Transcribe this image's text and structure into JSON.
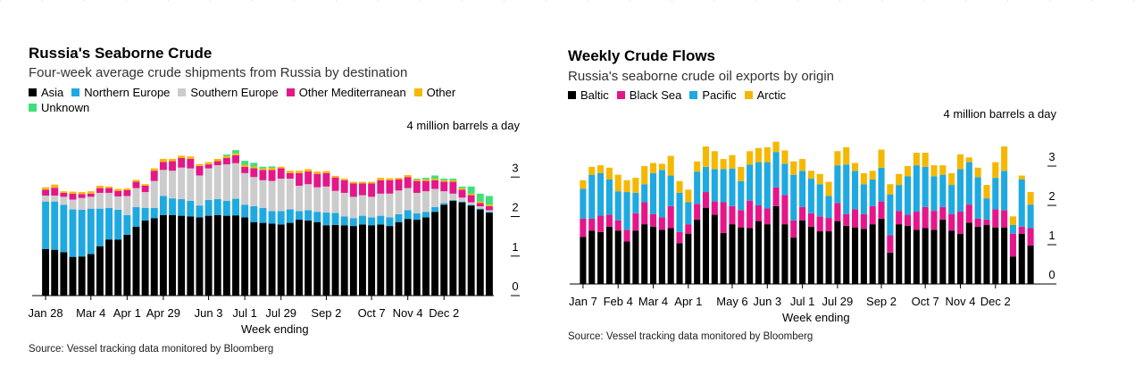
{
  "chart_data": [
    {
      "type": "bar",
      "stacked": true,
      "title": "Russia's Seaborne Crude",
      "subtitle": "Four-week average crude shipments from Russia by destination",
      "ylabel": "4 million barrels a day",
      "xlabel": "Week ending",
      "ylim": [
        0,
        4
      ],
      "yticks": [
        "0",
        "1",
        "2",
        "3"
      ],
      "xtick_labels": [
        {
          "label": "Jan 28",
          "index": 0
        },
        {
          "label": "Mar 4",
          "index": 5
        },
        {
          "label": "Apr 1",
          "index": 9
        },
        {
          "label": "Apr 29",
          "index": 13
        },
        {
          "label": "Jun 3",
          "index": 18
        },
        {
          "label": "Jul 1",
          "index": 22
        },
        {
          "label": "Jul 29",
          "index": 26
        },
        {
          "label": "Sep 2",
          "index": 31
        },
        {
          "label": "Oct 7",
          "index": 36
        },
        {
          "label": "Nov 4",
          "index": 40
        },
        {
          "label": "Dec 2",
          "index": 44
        }
      ],
      "legend": [
        "Asia",
        "Northern Europe",
        "Southern Europe",
        "Other Mediterranean",
        "Other",
        "Unknown"
      ],
      "colors": [
        "#000000",
        "#1fa9e1",
        "#cccccc",
        "#e5168a",
        "#f5b800",
        "#3ee07a"
      ],
      "series": [
        {
          "name": "Asia",
          "values": [
            1.18,
            1.16,
            1.1,
            0.98,
            0.99,
            1.05,
            1.25,
            1.42,
            1.42,
            1.54,
            1.74,
            1.9,
            1.96,
            2.04,
            2.04,
            2.02,
            2.0,
            1.98,
            2.02,
            2.04,
            2.02,
            2.03,
            1.98,
            1.86,
            1.84,
            1.82,
            1.8,
            1.84,
            1.92,
            1.9,
            1.86,
            1.78,
            1.79,
            1.78,
            1.76,
            1.8,
            1.78,
            1.8,
            1.76,
            1.86,
            1.94,
            1.92,
            1.98,
            2.12,
            2.3,
            2.4,
            2.36,
            2.28,
            2.18,
            2.1
          ]
        },
        {
          "name": "Northern Europe",
          "values": [
            1.2,
            1.22,
            1.2,
            1.2,
            1.18,
            1.15,
            0.95,
            0.8,
            0.75,
            0.5,
            0.5,
            0.32,
            0.26,
            0.48,
            0.42,
            0.42,
            0.4,
            0.3,
            0.4,
            0.4,
            0.38,
            0.42,
            0.32,
            0.4,
            0.38,
            0.32,
            0.34,
            0.34,
            0.22,
            0.26,
            0.26,
            0.32,
            0.3,
            0.22,
            0.2,
            0.22,
            0.2,
            0.22,
            0.22,
            0.2,
            0.22,
            0.16,
            0.14,
            0.12,
            0.04,
            0.02,
            0.02,
            0.02,
            0.02,
            0.02
          ]
        },
        {
          "name": "Southern Europe",
          "values": [
            0.15,
            0.15,
            0.2,
            0.25,
            0.3,
            0.3,
            0.4,
            0.38,
            0.34,
            0.48,
            0.48,
            0.4,
            0.68,
            0.66,
            0.7,
            0.8,
            0.82,
            0.76,
            0.8,
            0.86,
            0.92,
            0.9,
            0.8,
            0.74,
            0.7,
            0.76,
            0.82,
            0.78,
            0.64,
            0.66,
            0.62,
            0.66,
            0.56,
            0.6,
            0.54,
            0.52,
            0.52,
            0.56,
            0.6,
            0.6,
            0.56,
            0.52,
            0.52,
            0.46,
            0.3,
            0.16,
            0.1,
            0.06,
            0.06,
            0.04
          ]
        },
        {
          "name": "Other Mediterranean",
          "values": [
            0.15,
            0.2,
            0.1,
            0.15,
            0.1,
            0.08,
            0.12,
            0.12,
            0.14,
            0.15,
            0.16,
            0.16,
            0.26,
            0.2,
            0.24,
            0.24,
            0.24,
            0.24,
            0.1,
            0.1,
            0.16,
            0.2,
            0.16,
            0.22,
            0.26,
            0.28,
            0.26,
            0.14,
            0.32,
            0.32,
            0.34,
            0.34,
            0.34,
            0.32,
            0.34,
            0.3,
            0.34,
            0.34,
            0.34,
            0.28,
            0.28,
            0.3,
            0.26,
            0.22,
            0.24,
            0.3,
            0.2,
            0.18,
            0.08,
            0.1
          ]
        },
        {
          "name": "Other",
          "values": [
            0.06,
            0.08,
            0.04,
            0.05,
            0.05,
            0.06,
            0.06,
            0.04,
            0.05,
            0.04,
            0.05,
            0.04,
            0.06,
            0.08,
            0.06,
            0.06,
            0.06,
            0.05,
            0.06,
            0.06,
            0.05,
            0.05,
            0.05,
            0.04,
            0.04,
            0.05,
            0.04,
            0.06,
            0.06,
            0.06,
            0.06,
            0.05,
            0.04,
            0.04,
            0.04,
            0.04,
            0.04,
            0.06,
            0.05,
            0.04,
            0.05,
            0.04,
            0.04,
            0.04,
            0.04,
            0.04,
            0.04,
            0.04,
            0.04,
            0.04
          ]
        },
        {
          "name": "Unknown",
          "values": [
            0,
            0,
            0,
            0,
            0,
            0,
            0,
            0,
            0,
            0,
            0,
            0,
            0,
            0,
            0,
            0,
            0,
            0,
            0,
            0,
            0.04,
            0.08,
            0.1,
            0.1,
            0.04,
            0.04,
            0,
            0,
            0,
            0,
            0,
            0,
            0,
            0,
            0,
            0,
            0,
            0,
            0,
            0,
            0,
            0.02,
            0.04,
            0.08,
            0.04,
            0.04,
            0.04,
            0.18,
            0.2,
            0.22
          ]
        }
      ]
    },
    {
      "type": "bar",
      "stacked": true,
      "title": "Weekly Crude Flows",
      "subtitle": "Russia's seaborne crude oil exports by origin",
      "ylabel": "4 million barrels a day",
      "xlabel": "Week ending",
      "ylim": [
        0,
        4
      ],
      "yticks": [
        "0",
        "1",
        "2",
        "3"
      ],
      "xtick_labels": [
        {
          "label": "Jan 7",
          "index": 0
        },
        {
          "label": "Feb 4",
          "index": 4
        },
        {
          "label": "Mar 4",
          "index": 8
        },
        {
          "label": "Apr 1",
          "index": 12
        },
        {
          "label": "May 6",
          "index": 17
        },
        {
          "label": "Jun 3",
          "index": 21
        },
        {
          "label": "Jul 1",
          "index": 25
        },
        {
          "label": "Jul 29",
          "index": 29
        },
        {
          "label": "Sep 2",
          "index": 34
        },
        {
          "label": "Oct 7",
          "index": 39
        },
        {
          "label": "Nov 4",
          "index": 43
        },
        {
          "label": "Dec 2",
          "index": 47
        }
      ],
      "legend": [
        "Baltic",
        "Black Sea",
        "Pacific",
        "Arctic"
      ],
      "colors": [
        "#000000",
        "#e5168a",
        "#1fa9e1",
        "#f5b800"
      ],
      "series": [
        {
          "name": "Baltic",
          "values": [
            1.2,
            1.36,
            1.32,
            1.46,
            1.36,
            1.08,
            1.36,
            1.52,
            1.46,
            1.38,
            1.42,
            1.04,
            1.28,
            1.64,
            1.94,
            1.76,
            1.3,
            1.52,
            1.44,
            1.42,
            1.6,
            1.52,
            1.98,
            1.52,
            1.18,
            1.62,
            1.46,
            1.34,
            1.34,
            1.6,
            1.48,
            1.44,
            1.4,
            1.52,
            1.66,
            0.8,
            1.52,
            1.48,
            1.38,
            1.42,
            1.38,
            1.64,
            1.36,
            1.28,
            1.56,
            1.46,
            1.5,
            1.44,
            1.44,
            0.7,
            1.28,
            0.98
          ]
        },
        {
          "name": "Black Sea",
          "values": [
            0.46,
            0.3,
            0.42,
            0.3,
            0.26,
            0.3,
            0.44,
            0.56,
            0.32,
            0.32,
            0.56,
            0.28,
            0.24,
            0.4,
            0.4,
            0.34,
            0.78,
            0.46,
            0.44,
            0.7,
            0.4,
            0.4,
            0.48,
            0.74,
            0.44,
            0.34,
            0.34,
            0.38,
            0.34,
            0.46,
            0.3,
            0.46,
            0.38,
            0.46,
            0.44,
            0.44,
            0.34,
            0.28,
            0.46,
            0.54,
            0.48,
            0.32,
            0.42,
            0.56,
            0.46,
            0.2,
            0.14,
            0.46,
            0.44,
            0.58,
            0.18,
            0.44
          ]
        },
        {
          "name": "Pacific",
          "values": [
            0.76,
            1.12,
            1.08,
            0.9,
            0.74,
            0.96,
            0.52,
            0.46,
            1.04,
            1.2,
            0.78,
            1.0,
            0.56,
            0.82,
            0.64,
            0.82,
            0.84,
            0.96,
            0.74,
            0.92,
            1.1,
            1.18,
            0.9,
            0.8,
            1.16,
            0.92,
            0.88,
            0.82,
            0.56,
            0.96,
            1.26,
            0.98,
            0.76,
            0.68,
            0.86,
            1.04,
            0.66,
            0.98,
            1.18,
            1.02,
            0.88,
            0.82,
            0.74,
            1.08,
            1.08,
            1.06,
            0.54,
            0.8,
            1.0,
            0.22,
            1.2,
            0.6
          ]
        },
        {
          "name": "Arctic",
          "values": [
            0.22,
            0.2,
            0.2,
            0.3,
            0.42,
            0.3,
            0.38,
            0.46,
            0.26,
            0.16,
            0.5,
            0.3,
            0.32,
            0.26,
            0.52,
            0.46,
            0.26,
            0.34,
            0.36,
            0.34,
            0.36,
            0.38,
            0.26,
            0.34,
            0.34,
            0.3,
            0.2,
            0.26,
            0.36,
            0.36,
            0.44,
            0.2,
            0.28,
            0.22,
            0.46,
            0.26,
            0.28,
            0.26,
            0.32,
            0.36,
            0.28,
            0.24,
            0.3,
            0.38,
            0.12,
            0.24,
            0.34,
            0.4,
            0.62,
            0.22,
            0.1,
            0.32
          ]
        }
      ]
    }
  ],
  "source_left": "Source: Vessel tracking data monitored by Bloomberg",
  "source_right": "Source: Vessel tracking data monitored by Bloomberg"
}
